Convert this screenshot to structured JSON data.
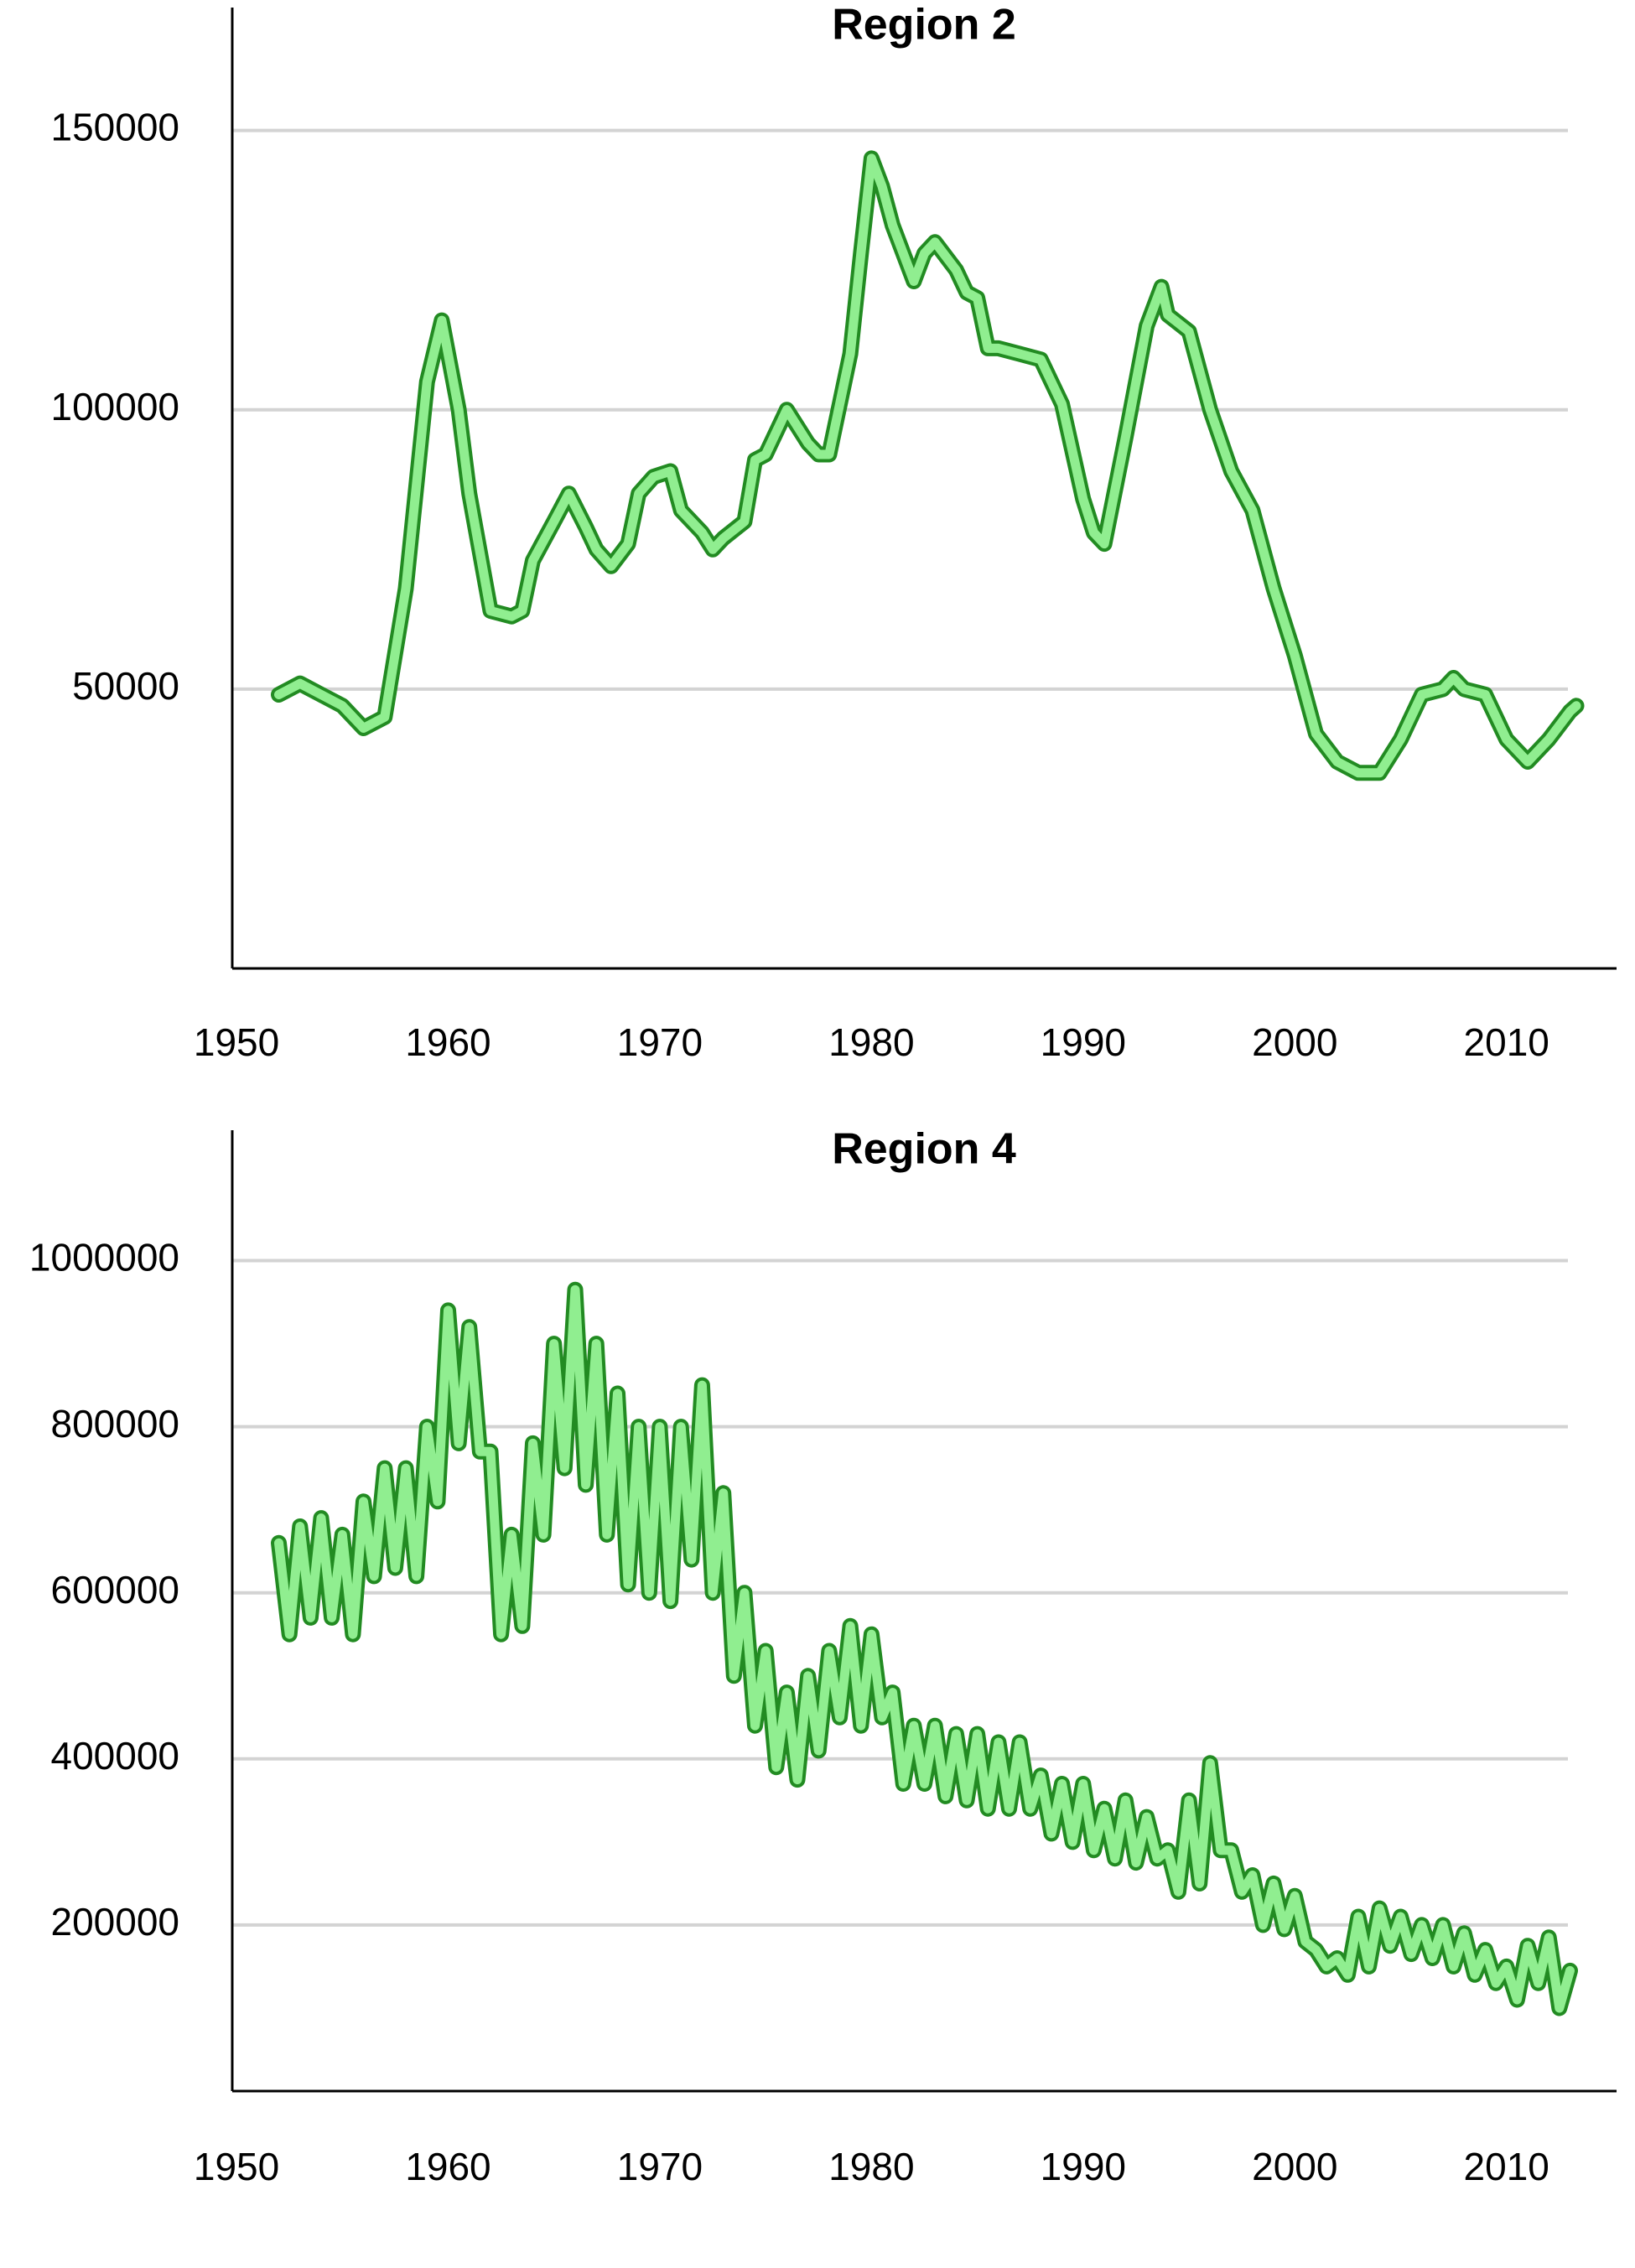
{
  "chart_data": [
    {
      "type": "line",
      "title": "Region 2",
      "color": "#90ee90",
      "edgecolor": "#228b22",
      "grid": true,
      "xlim": [
        1949.8,
        2015.2
      ],
      "xticks": [
        1950,
        1960,
        1970,
        1980,
        1990,
        2000,
        2010
      ],
      "ylim": [
        0,
        172000
      ],
      "yticks": [
        50000,
        100000,
        150000
      ],
      "x": [
        1952,
        1953,
        1954,
        1955,
        1956,
        1957,
        1958,
        1959,
        1959.7,
        1960.5,
        1961,
        1962,
        1963,
        1963.5,
        1964,
        1965,
        1965.7,
        1966.5,
        1967,
        1967.7,
        1968.5,
        1969,
        1969.7,
        1970.5,
        1971,
        1972,
        1972.5,
        1973,
        1974,
        1974.5,
        1975,
        1976,
        1977,
        1977.5,
        1978,
        1979,
        1979.5,
        1980,
        1980.5,
        1981,
        1982,
        1982.5,
        1983,
        1984,
        1984.5,
        1985,
        1985.5,
        1986,
        1987,
        1988,
        1989,
        1990,
        1990.5,
        1991,
        1992,
        1993,
        1993.7,
        1994,
        1995,
        1996,
        1997,
        1998,
        1999,
        2000,
        2001,
        2002,
        2003,
        2004,
        2005,
        2006,
        2007,
        2007.5,
        2008,
        2009,
        2010,
        2011,
        2012,
        2013,
        2013.3
      ],
      "values": [
        49000,
        51000,
        49000,
        47000,
        43000,
        45000,
        68000,
        105000,
        116000,
        100000,
        85000,
        64000,
        63000,
        64000,
        73000,
        80000,
        85000,
        79000,
        75000,
        72000,
        76000,
        85000,
        88000,
        89000,
        82000,
        78000,
        75000,
        77000,
        80000,
        91000,
        92000,
        100000,
        94000,
        92000,
        92000,
        110000,
        128000,
        145000,
        140000,
        133000,
        123000,
        128000,
        130000,
        125000,
        121000,
        120000,
        111000,
        111000,
        110000,
        109000,
        101000,
        84000,
        78000,
        76000,
        95000,
        115000,
        122000,
        117000,
        114000,
        100000,
        89000,
        82000,
        68000,
        56000,
        42000,
        37000,
        35000,
        35000,
        41000,
        49000,
        50000,
        52000,
        50000,
        49000,
        41000,
        37000,
        41000,
        46000,
        47000
      ]
    },
    {
      "type": "line",
      "title": "Region 4",
      "color": "#90ee90",
      "edgecolor": "#228b22",
      "grid": true,
      "xlim": [
        1949.8,
        2015.2
      ],
      "xticks": [
        1950,
        1960,
        1970,
        1980,
        1990,
        2000,
        2010
      ],
      "ylim": [
        0,
        1157000
      ],
      "yticks": [
        200000,
        400000,
        600000,
        800000,
        1000000
      ],
      "x": [
        1952,
        1952.5,
        1953,
        1953.5,
        1954,
        1954.5,
        1955,
        1955.5,
        1956,
        1956.5,
        1957,
        1957.5,
        1958,
        1958.5,
        1959,
        1959.5,
        1960,
        1960.5,
        1961,
        1961.5,
        1962,
        1962.5,
        1963,
        1963.5,
        1964,
        1964.5,
        1965,
        1965.5,
        1966,
        1966.5,
        1967,
        1967.5,
        1968,
        1968.5,
        1969,
        1969.5,
        1970,
        1970.5,
        1971,
        1971.5,
        1972,
        1972.5,
        1973,
        1973.5,
        1974,
        1974.5,
        1975,
        1975.5,
        1976,
        1976.5,
        1977,
        1977.5,
        1978,
        1978.5,
        1979,
        1979.5,
        1980,
        1980.5,
        1981,
        1981.5,
        1982,
        1982.5,
        1983,
        1983.5,
        1984,
        1984.5,
        1985,
        1985.5,
        1986,
        1986.5,
        1987,
        1987.5,
        1988,
        1988.5,
        1989,
        1989.5,
        1990,
        1990.5,
        1991,
        1991.5,
        1992,
        1992.5,
        1993,
        1993.5,
        1994,
        1994.5,
        1995,
        1995.5,
        1996,
        1996.5,
        1997,
        1997.5,
        1998,
        1998.5,
        1999,
        1999.5,
        2000,
        2000.5,
        2001,
        2001.5,
        2002,
        2002.5,
        2003,
        2003.5,
        2004,
        2004.5,
        2005,
        2005.5,
        2006,
        2006.5,
        2007,
        2007.5,
        2008,
        2008.5,
        2009,
        2009.5,
        2010,
        2010.5,
        2011,
        2011.5,
        2012,
        2012.5,
        2013
      ],
      "values": [
        660000,
        550000,
        680000,
        570000,
        690000,
        570000,
        670000,
        550000,
        710000,
        620000,
        750000,
        630000,
        750000,
        620000,
        800000,
        710000,
        940000,
        780000,
        920000,
        770000,
        770000,
        550000,
        670000,
        560000,
        780000,
        670000,
        900000,
        750000,
        965000,
        730000,
        900000,
        670000,
        840000,
        610000,
        800000,
        600000,
        800000,
        590000,
        800000,
        640000,
        850000,
        600000,
        720000,
        500000,
        600000,
        440000,
        530000,
        390000,
        480000,
        375000,
        500000,
        410000,
        530000,
        450000,
        560000,
        440000,
        550000,
        450000,
        480000,
        370000,
        440000,
        370000,
        440000,
        355000,
        430000,
        350000,
        430000,
        340000,
        420000,
        340000,
        420000,
        340000,
        380000,
        310000,
        370000,
        300000,
        370000,
        290000,
        340000,
        280000,
        350000,
        275000,
        330000,
        280000,
        290000,
        240000,
        350000,
        250000,
        395000,
        290000,
        290000,
        240000,
        260000,
        200000,
        250000,
        195000,
        235000,
        180000,
        170000,
        150000,
        160000,
        140000,
        210000,
        150000,
        220000,
        175000,
        210000,
        165000,
        200000,
        160000,
        200000,
        150000,
        190000,
        140000,
        170000,
        130000,
        150000,
        110000,
        175000,
        130000,
        185000,
        100000,
        145000
      ]
    }
  ]
}
